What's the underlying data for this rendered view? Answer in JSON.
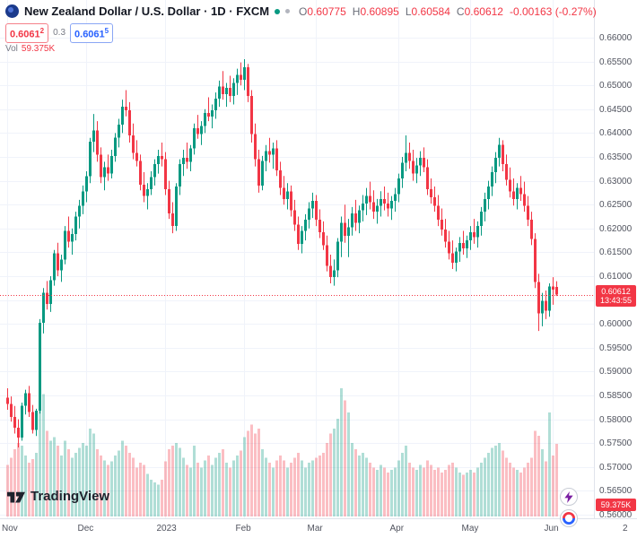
{
  "header": {
    "title": "New Zealand Dollar / U.S. Dollar · 1D · FXCM",
    "ohlc": {
      "o_label": "O",
      "o_value": "0.60775",
      "h_label": "H",
      "h_value": "0.60895",
      "l_label": "L",
      "l_value": "0.60584",
      "c_label": "C",
      "c_value": "0.60612",
      "change": "-0.00163 (-0.27%)"
    },
    "bid": {
      "main": "0.6061",
      "sup": "2"
    },
    "spread": "0.3",
    "ask": {
      "main": "0.6061",
      "sup": "5"
    },
    "vol_label": "Vol",
    "vol_value": "59.375K"
  },
  "price_scale": {
    "ticks": [
      "0.66000",
      "0.65500",
      "0.65000",
      "0.64500",
      "0.64000",
      "0.63500",
      "0.63000",
      "0.62500",
      "0.62000",
      "0.61500",
      "0.61000",
      "0.60500",
      "0.60000",
      "0.59500",
      "0.59000",
      "0.58500",
      "0.58000",
      "0.57500",
      "0.57000",
      "0.56500",
      "0.56000"
    ],
    "price_badge": {
      "price": "0.60612",
      "countdown": "13:43:55"
    },
    "volume_badge": "59.375K"
  },
  "time_axis": {
    "partial_label": "2"
  },
  "watermark": {
    "label": "TradingView"
  },
  "colors": {
    "up": "#089981",
    "down": "#f23645",
    "up_vol": "rgba(8,153,129,0.32)",
    "down_vol": "rgba(242,54,69,0.32)",
    "grid": "#f0f3fa",
    "price_line": "#f23645"
  },
  "chart_data": {
    "type": "candlestick",
    "interval": "1D",
    "ylim": [
      0.56,
      0.66
    ],
    "current_price": 0.60612,
    "countdown": "13:43:55",
    "last_volume_k": 59.375,
    "volume_max": 110,
    "columns": [
      "open",
      "high",
      "low",
      "close",
      "volume_k"
    ],
    "months": [
      {
        "label": "Nov",
        "index": 0
      },
      {
        "label": "Dec",
        "index": 22
      },
      {
        "label": "2023",
        "index": 44
      },
      {
        "label": "Feb",
        "index": 66
      },
      {
        "label": "Mar",
        "index": 86
      },
      {
        "label": "Apr",
        "index": 109
      },
      {
        "label": "May",
        "index": 129
      },
      {
        "label": "Jun",
        "index": 152
      }
    ],
    "candles": [
      [
        0.5845,
        0.5865,
        0.582,
        0.5832,
        42
      ],
      [
        0.5832,
        0.5848,
        0.5795,
        0.5805,
        48
      ],
      [
        0.5805,
        0.5828,
        0.577,
        0.5782,
        55
      ],
      [
        0.5782,
        0.58,
        0.5741,
        0.5762,
        60
      ],
      [
        0.5762,
        0.5835,
        0.5755,
        0.5828,
        58
      ],
      [
        0.5828,
        0.5862,
        0.581,
        0.5855,
        50
      ],
      [
        0.5855,
        0.587,
        0.5805,
        0.5815,
        44
      ],
      [
        0.5815,
        0.583,
        0.577,
        0.5778,
        47
      ],
      [
        0.5778,
        0.5822,
        0.5765,
        0.5818,
        52
      ],
      [
        0.5818,
        0.601,
        0.5812,
        0.6002,
        95
      ],
      [
        0.6002,
        0.6075,
        0.598,
        0.6065,
        100
      ],
      [
        0.6065,
        0.609,
        0.603,
        0.6042,
        70
      ],
      [
        0.6042,
        0.61,
        0.6025,
        0.6092,
        62
      ],
      [
        0.6092,
        0.6155,
        0.608,
        0.6148,
        65
      ],
      [
        0.6148,
        0.617,
        0.61,
        0.6112,
        58
      ],
      [
        0.6112,
        0.6145,
        0.6088,
        0.6135,
        50
      ],
      [
        0.6135,
        0.6205,
        0.6125,
        0.6195,
        62
      ],
      [
        0.6195,
        0.6225,
        0.616,
        0.6172,
        55
      ],
      [
        0.6172,
        0.62,
        0.6145,
        0.6188,
        48
      ],
      [
        0.6188,
        0.6235,
        0.6175,
        0.6225,
        52
      ],
      [
        0.6225,
        0.626,
        0.62,
        0.6248,
        56
      ],
      [
        0.6248,
        0.629,
        0.623,
        0.6278,
        60
      ],
      [
        0.6278,
        0.632,
        0.6255,
        0.631,
        58
      ],
      [
        0.631,
        0.639,
        0.6295,
        0.6382,
        72
      ],
      [
        0.6382,
        0.644,
        0.636,
        0.6405,
        68
      ],
      [
        0.6405,
        0.6425,
        0.634,
        0.6355,
        55
      ],
      [
        0.6355,
        0.637,
        0.6295,
        0.6308,
        50
      ],
      [
        0.6308,
        0.634,
        0.628,
        0.6328,
        46
      ],
      [
        0.6328,
        0.6355,
        0.63,
        0.6315,
        42
      ],
      [
        0.6315,
        0.6365,
        0.6305,
        0.6352,
        45
      ],
      [
        0.6352,
        0.64,
        0.634,
        0.639,
        50
      ],
      [
        0.639,
        0.643,
        0.637,
        0.6418,
        54
      ],
      [
        0.6418,
        0.647,
        0.64,
        0.6455,
        62
      ],
      [
        0.6455,
        0.649,
        0.6435,
        0.6448,
        58
      ],
      [
        0.6448,
        0.6465,
        0.638,
        0.6395,
        52
      ],
      [
        0.6395,
        0.642,
        0.6345,
        0.6358,
        48
      ],
      [
        0.6358,
        0.6385,
        0.633,
        0.6342,
        40
      ],
      [
        0.6342,
        0.6355,
        0.628,
        0.6292,
        44
      ],
      [
        0.6292,
        0.6318,
        0.6255,
        0.6268,
        42
      ],
      [
        0.6268,
        0.6295,
        0.624,
        0.6282,
        35
      ],
      [
        0.6282,
        0.632,
        0.627,
        0.6308,
        30
      ],
      [
        0.6308,
        0.6345,
        0.629,
        0.6335,
        28
      ],
      [
        0.6335,
        0.6365,
        0.6315,
        0.6352,
        26
      ],
      [
        0.6352,
        0.638,
        0.633,
        0.6345,
        30
      ],
      [
        0.6345,
        0.636,
        0.627,
        0.6282,
        45
      ],
      [
        0.6282,
        0.63,
        0.622,
        0.6232,
        55
      ],
      [
        0.6232,
        0.6255,
        0.619,
        0.6205,
        58
      ],
      [
        0.6205,
        0.6295,
        0.6195,
        0.6288,
        60
      ],
      [
        0.6288,
        0.6345,
        0.627,
        0.6335,
        56
      ],
      [
        0.6335,
        0.6365,
        0.631,
        0.6348,
        48
      ],
      [
        0.6348,
        0.638,
        0.6325,
        0.634,
        42
      ],
      [
        0.634,
        0.6375,
        0.632,
        0.6368,
        40
      ],
      [
        0.6368,
        0.642,
        0.6355,
        0.641,
        58
      ],
      [
        0.641,
        0.6438,
        0.6388,
        0.6398,
        44
      ],
      [
        0.6398,
        0.6425,
        0.6375,
        0.6415,
        40
      ],
      [
        0.6415,
        0.645,
        0.64,
        0.6442,
        46
      ],
      [
        0.6442,
        0.6475,
        0.6425,
        0.6435,
        50
      ],
      [
        0.6435,
        0.646,
        0.641,
        0.6448,
        42
      ],
      [
        0.6448,
        0.6485,
        0.643,
        0.6472,
        48
      ],
      [
        0.6472,
        0.651,
        0.6455,
        0.6498,
        52
      ],
      [
        0.6498,
        0.653,
        0.647,
        0.6482,
        55
      ],
      [
        0.6482,
        0.6505,
        0.6455,
        0.6495,
        44
      ],
      [
        0.6495,
        0.652,
        0.6465,
        0.6478,
        40
      ],
      [
        0.6478,
        0.6515,
        0.646,
        0.6505,
        46
      ],
      [
        0.6505,
        0.6535,
        0.648,
        0.6522,
        50
      ],
      [
        0.6522,
        0.6548,
        0.65,
        0.6512,
        54
      ],
      [
        0.6512,
        0.6555,
        0.649,
        0.6538,
        65
      ],
      [
        0.6538,
        0.6545,
        0.6465,
        0.6478,
        70
      ],
      [
        0.6478,
        0.649,
        0.638,
        0.6398,
        75
      ],
      [
        0.6398,
        0.642,
        0.633,
        0.6345,
        68
      ],
      [
        0.6345,
        0.6365,
        0.6275,
        0.629,
        72
      ],
      [
        0.629,
        0.6352,
        0.628,
        0.6342,
        55
      ],
      [
        0.6342,
        0.6375,
        0.632,
        0.6362,
        48
      ],
      [
        0.6362,
        0.639,
        0.6338,
        0.6355,
        44
      ],
      [
        0.6355,
        0.638,
        0.6325,
        0.6368,
        40
      ],
      [
        0.6368,
        0.6385,
        0.631,
        0.6322,
        46
      ],
      [
        0.6322,
        0.634,
        0.627,
        0.6285,
        50
      ],
      [
        0.6285,
        0.631,
        0.625,
        0.6262,
        46
      ],
      [
        0.6262,
        0.6295,
        0.624,
        0.6278,
        40
      ],
      [
        0.6278,
        0.629,
        0.6225,
        0.6238,
        44
      ],
      [
        0.6238,
        0.626,
        0.6195,
        0.6208,
        48
      ],
      [
        0.6208,
        0.6225,
        0.6155,
        0.6168,
        52
      ],
      [
        0.6168,
        0.6205,
        0.6148,
        0.6195,
        46
      ],
      [
        0.6195,
        0.623,
        0.6175,
        0.6218,
        40
      ],
      [
        0.6218,
        0.6255,
        0.62,
        0.6242,
        44
      ],
      [
        0.6242,
        0.6275,
        0.6222,
        0.6258,
        46
      ],
      [
        0.6258,
        0.627,
        0.6205,
        0.6218,
        48
      ],
      [
        0.6218,
        0.624,
        0.618,
        0.6192,
        50
      ],
      [
        0.6192,
        0.6215,
        0.6155,
        0.6165,
        52
      ],
      [
        0.6165,
        0.6185,
        0.611,
        0.6122,
        60
      ],
      [
        0.6122,
        0.6145,
        0.6085,
        0.6098,
        68
      ],
      [
        0.6098,
        0.6135,
        0.608,
        0.6112,
        72
      ],
      [
        0.6112,
        0.618,
        0.6098,
        0.6172,
        80
      ],
      [
        0.6172,
        0.6225,
        0.614,
        0.6212,
        105
      ],
      [
        0.6212,
        0.625,
        0.617,
        0.6185,
        95
      ],
      [
        0.6185,
        0.622,
        0.614,
        0.6202,
        85
      ],
      [
        0.6202,
        0.6245,
        0.6185,
        0.6232,
        60
      ],
      [
        0.6232,
        0.626,
        0.6195,
        0.6212,
        55
      ],
      [
        0.6212,
        0.6248,
        0.619,
        0.6238,
        50
      ],
      [
        0.6238,
        0.627,
        0.6215,
        0.6252,
        52
      ],
      [
        0.6252,
        0.6285,
        0.6228,
        0.6268,
        48
      ],
      [
        0.6268,
        0.6298,
        0.624,
        0.6255,
        44
      ],
      [
        0.6255,
        0.628,
        0.622,
        0.6235,
        40
      ],
      [
        0.6235,
        0.6262,
        0.621,
        0.6248,
        38
      ],
      [
        0.6248,
        0.6278,
        0.6225,
        0.6262,
        42
      ],
      [
        0.6262,
        0.6288,
        0.6238,
        0.6252,
        40
      ],
      [
        0.6252,
        0.6275,
        0.6225,
        0.6242,
        36
      ],
      [
        0.6242,
        0.6268,
        0.6218,
        0.6258,
        38
      ],
      [
        0.6258,
        0.6285,
        0.6235,
        0.6272,
        40
      ],
      [
        0.6272,
        0.6315,
        0.6255,
        0.6305,
        46
      ],
      [
        0.6305,
        0.635,
        0.6285,
        0.6338,
        52
      ],
      [
        0.6338,
        0.6395,
        0.632,
        0.6358,
        58
      ],
      [
        0.6358,
        0.638,
        0.6325,
        0.6342,
        44
      ],
      [
        0.6342,
        0.6365,
        0.63,
        0.6315,
        40
      ],
      [
        0.6315,
        0.6348,
        0.6295,
        0.6332,
        38
      ],
      [
        0.6332,
        0.6362,
        0.631,
        0.6348,
        42
      ],
      [
        0.6348,
        0.637,
        0.6318,
        0.6328,
        40
      ],
      [
        0.6328,
        0.6345,
        0.627,
        0.6282,
        46
      ],
      [
        0.6282,
        0.6305,
        0.6252,
        0.6265,
        42
      ],
      [
        0.6265,
        0.6288,
        0.6235,
        0.6248,
        38
      ],
      [
        0.6248,
        0.627,
        0.6205,
        0.6218,
        40
      ],
      [
        0.6218,
        0.6242,
        0.6185,
        0.6198,
        36
      ],
      [
        0.6198,
        0.622,
        0.616,
        0.6172,
        38
      ],
      [
        0.6172,
        0.6195,
        0.6135,
        0.6148,
        42
      ],
      [
        0.6148,
        0.6175,
        0.6115,
        0.6128,
        44
      ],
      [
        0.6128,
        0.616,
        0.611,
        0.6152,
        40
      ],
      [
        0.6152,
        0.6182,
        0.613,
        0.617,
        36
      ],
      [
        0.617,
        0.6195,
        0.6145,
        0.6158,
        34
      ],
      [
        0.6158,
        0.6185,
        0.6138,
        0.6175,
        36
      ],
      [
        0.6175,
        0.6205,
        0.6155,
        0.6192,
        38
      ],
      [
        0.6192,
        0.622,
        0.6168,
        0.6182,
        36
      ],
      [
        0.6182,
        0.6215,
        0.616,
        0.6205,
        40
      ],
      [
        0.6205,
        0.6245,
        0.6185,
        0.6235,
        44
      ],
      [
        0.6235,
        0.6275,
        0.6215,
        0.6262,
        48
      ],
      [
        0.6262,
        0.63,
        0.624,
        0.6288,
        52
      ],
      [
        0.6288,
        0.633,
        0.6268,
        0.6318,
        56
      ],
      [
        0.6318,
        0.636,
        0.6295,
        0.6348,
        58
      ],
      [
        0.6348,
        0.639,
        0.633,
        0.6375,
        60
      ],
      [
        0.6375,
        0.6385,
        0.632,
        0.6335,
        54
      ],
      [
        0.6335,
        0.6355,
        0.629,
        0.6302,
        48
      ],
      [
        0.6302,
        0.6328,
        0.6265,
        0.6278,
        44
      ],
      [
        0.6278,
        0.6305,
        0.6248,
        0.6262,
        40
      ],
      [
        0.6262,
        0.6295,
        0.624,
        0.6285,
        38
      ],
      [
        0.6285,
        0.631,
        0.6258,
        0.6272,
        36
      ],
      [
        0.6272,
        0.6298,
        0.6235,
        0.6248,
        40
      ],
      [
        0.6248,
        0.6268,
        0.6205,
        0.6218,
        44
      ],
      [
        0.6218,
        0.6235,
        0.6165,
        0.6178,
        48
      ],
      [
        0.6178,
        0.619,
        0.6075,
        0.6088,
        70
      ],
      [
        0.6088,
        0.6105,
        0.5985,
        0.6022,
        66
      ],
      [
        0.6022,
        0.6065,
        0.5995,
        0.6048,
        55
      ],
      [
        0.6048,
        0.607,
        0.601,
        0.6028,
        45
      ],
      [
        0.6028,
        0.6085,
        0.6015,
        0.6078,
        85
      ],
      [
        0.6078,
        0.6098,
        0.604,
        0.6072,
        50
      ],
      [
        0.60775,
        0.60895,
        0.60584,
        0.60612,
        59.375
      ]
    ]
  }
}
